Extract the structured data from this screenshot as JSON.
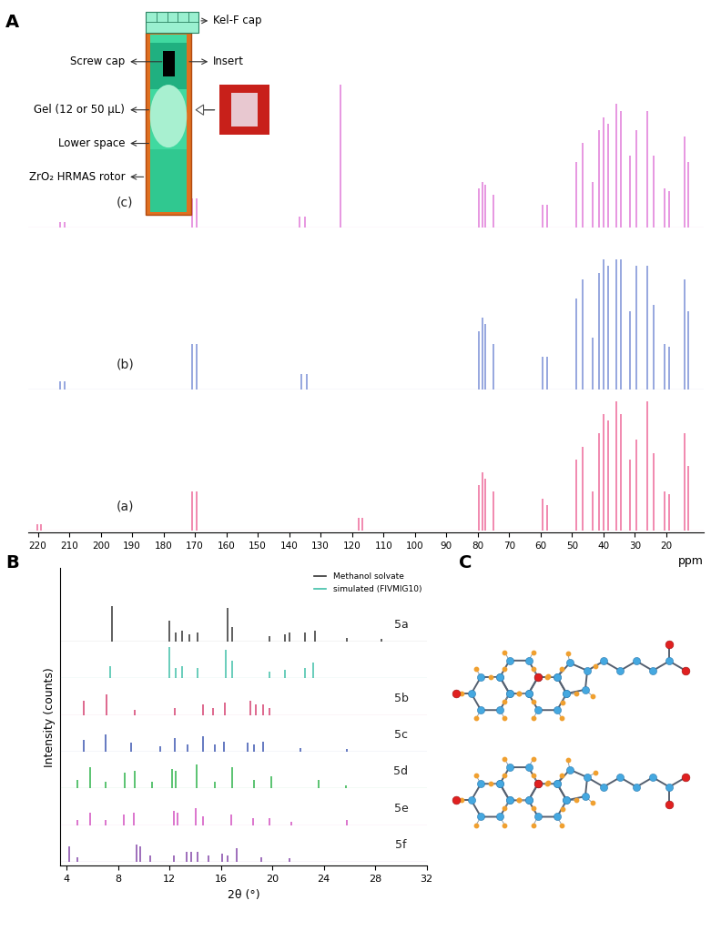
{
  "panel_labels": [
    "A",
    "B",
    "C"
  ],
  "rotor_diagram": {
    "labels": [
      "Kel-F cap",
      "Screw cap",
      "Insert",
      "Gel (12 or 50 μL)",
      "Lower space",
      "ZrO₂ HRMAS rotor"
    ]
  },
  "chart_data": [
    {
      "type": "spectrum",
      "x_label": "ppm",
      "xlim": [
        223,
        8
      ],
      "xticks": [
        220,
        210,
        200,
        190,
        180,
        170,
        160,
        150,
        140,
        130,
        120,
        110,
        100,
        90,
        80,
        70,
        60,
        50,
        40,
        30,
        20
      ],
      "ylim": [
        0,
        1.15
      ],
      "tick_labels": "x",
      "series": [
        {
          "label": "(a)",
          "color": "#ee6a9a",
          "x": [
            220.3,
            218.9,
            171.0,
            169.5,
            118.0,
            116.7,
            79.5,
            78.5,
            77.5,
            75.0,
            59.4,
            57.8,
            48.5,
            46.5,
            43.5,
            41.5,
            40.0,
            38.5,
            36.0,
            34.5,
            31.5,
            29.5,
            26.0,
            24.0,
            20.5,
            19.0,
            14.0,
            13.0
          ],
          "values": [
            0.05,
            0.05,
            0.3,
            0.3,
            0.1,
            0.1,
            0.35,
            0.45,
            0.4,
            0.3,
            0.25,
            0.2,
            0.55,
            0.65,
            0.3,
            0.75,
            0.9,
            0.85,
            1.0,
            0.9,
            0.55,
            0.7,
            1.0,
            0.6,
            0.3,
            0.28,
            0.75,
            0.5
          ]
        },
        {
          "label": "(b)",
          "color": "#7b8fd6",
          "x": [
            212.9,
            211.4,
            171.0,
            169.5,
            136.0,
            134.5,
            79.5,
            78.5,
            77.5,
            75.0,
            59.4,
            57.8,
            48.5,
            46.5,
            43.5,
            41.5,
            40.0,
            38.5,
            36.0,
            34.5,
            31.5,
            29.5,
            26.0,
            24.0,
            20.5,
            19.0,
            14.0,
            13.0
          ],
          "values": [
            0.06,
            0.06,
            0.35,
            0.35,
            0.12,
            0.12,
            0.45,
            0.55,
            0.5,
            0.35,
            0.25,
            0.25,
            0.7,
            0.85,
            0.4,
            0.9,
            1.0,
            0.95,
            1.0,
            1.0,
            0.6,
            0.95,
            0.95,
            0.65,
            0.35,
            0.33,
            0.85,
            0.6
          ]
        },
        {
          "label": "(c)",
          "color": "#e07ad8",
          "x": [
            212.9,
            211.4,
            171.0,
            169.5,
            136.6,
            135.1,
            123.7,
            79.5,
            78.5,
            77.5,
            75.0,
            59.4,
            57.8,
            48.5,
            46.5,
            43.5,
            41.5,
            40.0,
            38.5,
            36.0,
            34.5,
            31.5,
            29.5,
            26.0,
            24.0,
            20.5,
            19.0,
            14.0,
            13.0
          ],
          "values": [
            0.04,
            0.04,
            0.22,
            0.22,
            0.08,
            0.08,
            1.1,
            0.3,
            0.35,
            0.33,
            0.25,
            0.17,
            0.17,
            0.5,
            0.65,
            0.35,
            0.75,
            0.85,
            0.8,
            0.95,
            0.9,
            0.55,
            0.75,
            0.9,
            0.55,
            0.3,
            0.28,
            0.7,
            0.5
          ]
        }
      ]
    },
    {
      "type": "spectrum",
      "x_label": "2θ (°)",
      "y_label": "Intensity (counts)",
      "xlim": [
        3.5,
        32
      ],
      "xticks": [
        4,
        8,
        12,
        16,
        20,
        24,
        28,
        32
      ],
      "ylim": [
        0,
        1.05
      ],
      "tick_labels": "x",
      "legend": "upper right",
      "series": [
        {
          "label": "5a",
          "name": "Methanol solvate",
          "color": "#333333",
          "x": [
            7.5,
            12.0,
            12.5,
            13.0,
            13.5,
            14.2,
            16.5,
            16.9,
            19.8,
            21.0,
            21.3,
            22.5,
            23.3,
            25.8,
            28.5
          ],
          "values": [
            1.0,
            0.6,
            0.25,
            0.3,
            0.2,
            0.25,
            0.95,
            0.4,
            0.15,
            0.2,
            0.25,
            0.25,
            0.3,
            0.1,
            0.08
          ]
        },
        {
          "name": "simulated (FIVMIG10)",
          "color": "#40c0a8",
          "x": [
            7.4,
            12.0,
            12.5,
            13.0,
            14.2,
            16.4,
            16.9,
            19.8,
            21.0,
            22.5,
            23.2
          ],
          "values": [
            0.35,
            0.9,
            0.3,
            0.35,
            0.3,
            0.8,
            0.5,
            0.2,
            0.25,
            0.3,
            0.45
          ]
        },
        {
          "label": "5b",
          "color": "#d43f6f",
          "x": [
            5.3,
            7.1,
            9.3,
            12.4,
            14.6,
            15.4,
            16.3,
            18.3,
            18.7,
            19.3,
            19.8
          ],
          "values": [
            0.4,
            0.6,
            0.15,
            0.2,
            0.3,
            0.2,
            0.35,
            0.4,
            0.3,
            0.3,
            0.2
          ]
        },
        {
          "label": "5c",
          "color": "#3a55b0",
          "x": [
            5.3,
            7.0,
            9.0,
            11.3,
            12.4,
            13.4,
            14.6,
            15.5,
            16.2,
            18.1,
            18.6,
            19.3,
            22.2,
            25.8
          ],
          "values": [
            0.35,
            0.5,
            0.25,
            0.15,
            0.4,
            0.2,
            0.45,
            0.2,
            0.3,
            0.25,
            0.2,
            0.3,
            0.1,
            0.08
          ]
        },
        {
          "label": "5d",
          "color": "#2db34a",
          "x": [
            4.8,
            5.8,
            7.0,
            8.5,
            9.3,
            10.6,
            12.2,
            12.5,
            14.1,
            15.5,
            16.9,
            18.6,
            19.9,
            23.6,
            25.7
          ],
          "values": [
            0.25,
            0.6,
            0.2,
            0.45,
            0.5,
            0.2,
            0.55,
            0.5,
            0.7,
            0.2,
            0.6,
            0.25,
            0.35,
            0.25,
            0.1
          ]
        },
        {
          "label": "5e",
          "color": "#d24fc0",
          "x": [
            4.8,
            5.8,
            7.0,
            8.4,
            9.2,
            12.3,
            12.6,
            14.0,
            14.6,
            16.8,
            18.5,
            19.8,
            21.5,
            25.8
          ],
          "values": [
            0.15,
            0.35,
            0.15,
            0.3,
            0.35,
            0.4,
            0.35,
            0.5,
            0.25,
            0.3,
            0.2,
            0.2,
            0.1,
            0.15
          ]
        },
        {
          "label": "5f",
          "color": "#8446a8",
          "x": [
            4.2,
            4.8,
            9.4,
            9.7,
            10.5,
            12.3,
            13.3,
            13.7,
            14.2,
            15.0,
            16.1,
            16.5,
            17.2,
            19.1,
            21.3
          ],
          "values": [
            0.45,
            0.15,
            0.5,
            0.45,
            0.2,
            0.2,
            0.3,
            0.3,
            0.3,
            0.2,
            0.25,
            0.2,
            0.4,
            0.15,
            0.1
          ]
        }
      ]
    }
  ]
}
